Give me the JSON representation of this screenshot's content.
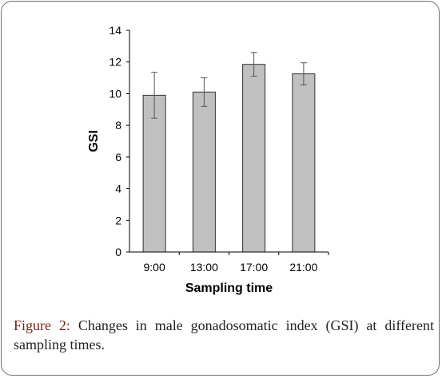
{
  "chart_data": {
    "type": "bar",
    "categories": [
      "9:00",
      "13:00",
      "17:00",
      "21:00"
    ],
    "values": [
      9.9,
      10.1,
      11.85,
      11.25
    ],
    "error": [
      1.45,
      0.9,
      0.75,
      0.7
    ],
    "xlabel": "Sampling time",
    "ylabel": "GSI",
    "ylim": [
      0,
      14
    ],
    "yticks": [
      0,
      2,
      4,
      6,
      8,
      10,
      12,
      14
    ],
    "grid": false,
    "legend": "none",
    "bar_color": "#c0c0c0",
    "bar_edge_color": "#303030"
  },
  "caption": {
    "label": "Figure 2:",
    "text": "Changes in male gonadosomatic index (GSI) at different sampling times."
  }
}
